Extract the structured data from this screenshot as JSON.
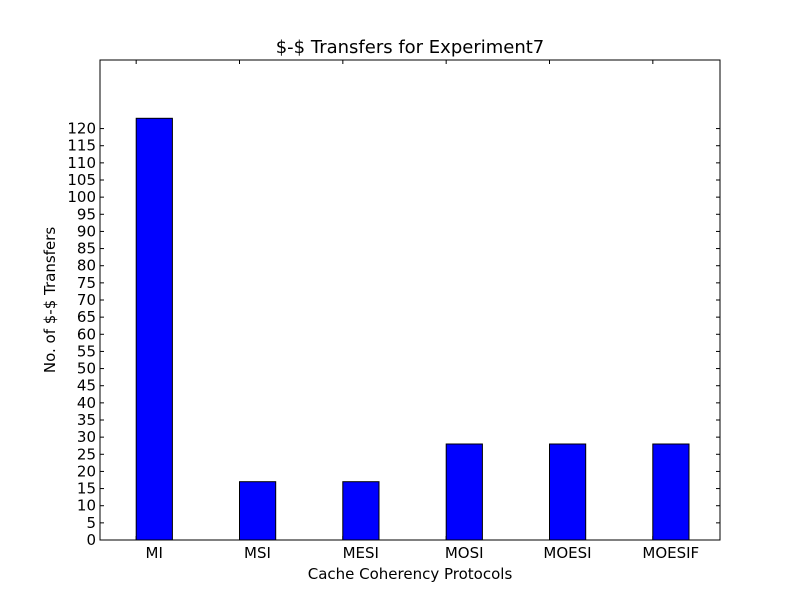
{
  "chart_data": {
    "type": "bar",
    "title": "$-$ Transfers for Experiment7",
    "xlabel": "Cache Coherency Protocols",
    "ylabel": "No. of $-$ Transfers",
    "categories": [
      "MI",
      "MSI",
      "MESI",
      "MOSI",
      "MOESI",
      "MOESIF"
    ],
    "values": [
      123,
      17,
      17,
      28,
      28,
      28
    ],
    "ylim": [
      0,
      140
    ],
    "yticks": [
      0,
      5,
      10,
      15,
      20,
      25,
      30,
      35,
      40,
      45,
      50,
      55,
      60,
      65,
      70,
      75,
      80,
      85,
      90,
      95,
      100,
      105,
      110,
      115,
      120
    ],
    "bar_color": "#0000ff",
    "grid": false,
    "legend": "none"
  }
}
